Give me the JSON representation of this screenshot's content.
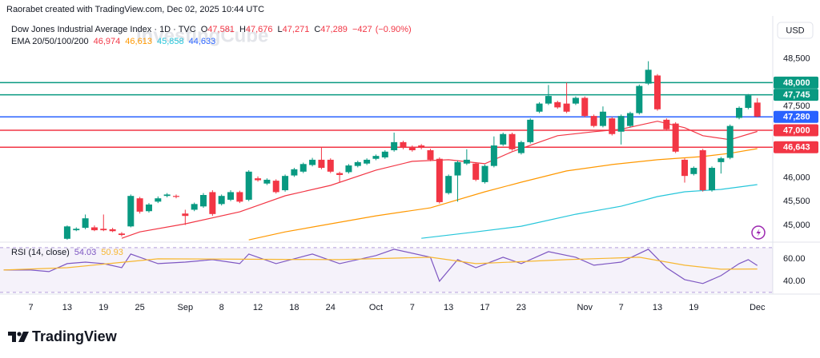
{
  "header": {
    "created": "Raorabet created with TradingView.com, Dec 02, 2025 10:44 UTC",
    "currency": "USD",
    "watermark": "InvestingCube"
  },
  "footer": {
    "brand": "TradingView"
  },
  "chart_data": [
    {
      "type": "candlestick",
      "legend": {
        "name": "Dow Jones Industrial Average Index · 1D · TVC",
        "ohlc": [
          {
            "name": "O",
            "value": 47581,
            "label": "47,581"
          },
          {
            "name": "H",
            "value": 47676,
            "label": "47,676"
          },
          {
            "name": "L",
            "value": 47271,
            "label": "47,271"
          },
          {
            "name": "C",
            "value": 47289,
            "label": "47,289"
          }
        ],
        "change": {
          "value": -427,
          "label": "−427"
        },
        "change_pct": {
          "value": -0.9,
          "label": "(−0.90%)"
        }
      },
      "ema_legend": {
        "name": "EMA 20/50/100/200",
        "values": [
          {
            "value": 46974,
            "label": "46,974",
            "color": "#f23645"
          },
          {
            "value": 46613,
            "label": "46,613",
            "color": "#ff9800"
          },
          {
            "value": 45858,
            "label": "45,858",
            "color": "#26c6da"
          },
          {
            "value": 44633,
            "label": "44,633",
            "color": "#2962ff"
          }
        ]
      },
      "up_color": "#089981",
      "down_color": "#f23645",
      "x": [
        0,
        1,
        2,
        3,
        4,
        5,
        6,
        7,
        8,
        9,
        10,
        11,
        12,
        13,
        14,
        15,
        16,
        17,
        18,
        19,
        20,
        21,
        22,
        23,
        24,
        25,
        26,
        27,
        28,
        29,
        30,
        31,
        32,
        33,
        34,
        35,
        36,
        37,
        38,
        39,
        40,
        41,
        42,
        43,
        44,
        45,
        46,
        47,
        48,
        49,
        50,
        51,
        52,
        53,
        54,
        55,
        56,
        57,
        58,
        59,
        60,
        61,
        62,
        63,
        64,
        65,
        66,
        67,
        68,
        69,
        70,
        71,
        72,
        73,
        74,
        75,
        76
      ],
      "open": [
        44720,
        44900,
        44950,
        44960,
        44930,
        44920,
        44830,
        44980,
        45570,
        45300,
        45500,
        45620,
        45620,
        45250,
        45330,
        45400,
        45700,
        45450,
        45540,
        45700,
        45540,
        45990,
        45880,
        45940,
        45740,
        46050,
        46130,
        46270,
        46380,
        46380,
        46100,
        46120,
        46250,
        46300,
        46400,
        46430,
        46580,
        46750,
        46650,
        46680,
        46580,
        46400,
        45680,
        46050,
        46300,
        46300,
        45910,
        46250,
        46700,
        46920,
        46520,
        46750,
        47390,
        47560,
        47590,
        47560,
        47560,
        47680,
        47300,
        47090,
        47250,
        46970,
        47090,
        47360,
        47980,
        48150,
        47220,
        47140,
        46380,
        46080,
        46580,
        45740,
        46330,
        46420,
        47260,
        47470,
        47581
      ],
      "high": [
        45000,
        44960,
        45230,
        45000,
        45230,
        44950,
        44860,
        45650,
        45600,
        45470,
        45610,
        45680,
        45650,
        45330,
        45480,
        45680,
        45740,
        45650,
        45740,
        45730,
        46160,
        46030,
        45990,
        45970,
        46070,
        46210,
        46320,
        46420,
        46650,
        46410,
        46130,
        46290,
        46360,
        46410,
        46490,
        46580,
        46950,
        46780,
        46680,
        46710,
        46610,
        46430,
        46070,
        46360,
        46600,
        46330,
        46280,
        46870,
        46950,
        46950,
        46780,
        47250,
        47590,
        47950,
        47620,
        48000,
        47710,
        47710,
        47330,
        47500,
        47280,
        47330,
        47390,
        47960,
        48450,
        48180,
        47250,
        47170,
        46410,
        46240,
        46610,
        46240,
        46440,
        47120,
        47500,
        47760,
        47676
      ],
      "low": [
        44700,
        44880,
        44920,
        44880,
        44880,
        44860,
        44770,
        44960,
        45250,
        45270,
        45470,
        45590,
        45570,
        45010,
        45300,
        45370,
        45200,
        45420,
        45510,
        45470,
        45510,
        45920,
        45850,
        45670,
        45710,
        46020,
        46100,
        46240,
        46180,
        46100,
        45900,
        46090,
        46220,
        46270,
        46370,
        46400,
        46550,
        46600,
        46550,
        46600,
        46350,
        45460,
        45650,
        45500,
        46270,
        45930,
        45880,
        46220,
        46670,
        46570,
        46490,
        46720,
        47360,
        47530,
        47450,
        47360,
        47530,
        47270,
        47060,
        47060,
        46890,
        46700,
        47060,
        47330,
        47950,
        47410,
        46990,
        46520,
        45900,
        46050,
        45710,
        45710,
        46090,
        46390,
        47230,
        47440,
        47271
      ],
      "close": [
        44980,
        44930,
        45150,
        44900,
        44900,
        44880,
        44800,
        45620,
        45290,
        45440,
        45570,
        45650,
        45600,
        45200,
        45450,
        45640,
        45240,
        45620,
        45700,
        45500,
        46130,
        45950,
        45960,
        45700,
        46040,
        46180,
        46290,
        46380,
        46210,
        46130,
        46060,
        46260,
        46330,
        46380,
        46460,
        46550,
        46750,
        46630,
        46580,
        46630,
        46380,
        45490,
        46040,
        46330,
        46380,
        45960,
        46250,
        46680,
        46920,
        46600,
        46750,
        47220,
        47560,
        47720,
        47480,
        47390,
        47680,
        47300,
        47090,
        47390,
        46920,
        47300,
        47360,
        47930,
        48270,
        47440,
        47020,
        46550,
        46040,
        46210,
        45740,
        46210,
        46410,
        47090,
        47470,
        47730,
        47289
      ],
      "overlays": [
        {
          "color": "#f23645",
          "x": [
            6,
            8,
            13,
            19,
            24,
            29,
            34,
            38,
            42,
            46,
            49,
            54,
            58,
            61,
            65,
            68,
            70,
            73,
            76
          ],
          "values": [
            44730,
            44865,
            45034,
            45286,
            45623,
            45842,
            46162,
            46347,
            46381,
            46297,
            46549,
            46886,
            46970,
            47021,
            47189,
            47054,
            46886,
            46802,
            46974
          ]
        },
        {
          "color": "#ff9800",
          "x": [
            20,
            24,
            29,
            34,
            40,
            46,
            50,
            55,
            60,
            65,
            70,
            73,
            76
          ],
          "values": [
            44697,
            44865,
            45034,
            45202,
            45370,
            45707,
            45909,
            46145,
            46280,
            46381,
            46448,
            46516,
            46613
          ]
        },
        {
          "color": "#26c6da",
          "x": [
            39,
            45,
            50,
            56,
            61,
            65,
            68,
            72,
            76
          ],
          "values": [
            44730,
            44865,
            44983,
            45236,
            45404,
            45606,
            45707,
            45758,
            45858
          ]
        }
      ],
      "levels": [
        {
          "value": 48000,
          "label": "48,000",
          "color": "#089981"
        },
        {
          "value": 47745,
          "label": "47,745",
          "color": "#089981"
        },
        {
          "value": 47280,
          "label": "47,280",
          "color": "#2962ff"
        },
        {
          "value": 47000,
          "label": "47,000",
          "color": "#f23645"
        },
        {
          "value": 46643,
          "label": "46,643",
          "color": "#f23645"
        }
      ],
      "xlim": [
        -7.4,
        77.7
      ],
      "ylim": [
        44700,
        49400
      ],
      "yticks": [
        {
          "value": 45000,
          "label": "45,000"
        },
        {
          "value": 45500,
          "label": "45,500"
        },
        {
          "value": 46000,
          "label": "46,000"
        },
        {
          "value": 47500,
          "label": "47,500"
        },
        {
          "value": 48500,
          "label": "48,500"
        }
      ],
      "xticks": [
        {
          "value": -4,
          "label": "7"
        },
        {
          "value": 0,
          "label": "13"
        },
        {
          "value": 4,
          "label": "19"
        },
        {
          "value": 8,
          "label": "25"
        },
        {
          "value": 13,
          "label": "Sep"
        },
        {
          "value": 17,
          "label": "8"
        },
        {
          "value": 21,
          "label": "12"
        },
        {
          "value": 25,
          "label": "18"
        },
        {
          "value": 29,
          "label": "24"
        },
        {
          "value": 34,
          "label": "Oct"
        },
        {
          "value": 38,
          "label": "7"
        },
        {
          "value": 42,
          "label": "13"
        },
        {
          "value": 46,
          "label": "17"
        },
        {
          "value": 50,
          "label": "23"
        },
        {
          "value": 57,
          "label": "Nov"
        },
        {
          "value": 61,
          "label": "7"
        },
        {
          "value": 65,
          "label": "13"
        },
        {
          "value": 69,
          "label": "19"
        },
        {
          "value": 76,
          "label": "Dec"
        }
      ]
    },
    {
      "type": "line",
      "legend": {
        "name": "RSI (14, close)",
        "values": [
          {
            "value": 54.03,
            "label": "54.03",
            "color": "#7e57c2"
          },
          {
            "value": 50.93,
            "label": "50.93",
            "color": "#f7b731"
          }
        ]
      },
      "series": [
        {
          "color": "#7e57c2",
          "x": [
            -7,
            -4,
            -2,
            0,
            2,
            4,
            6,
            7,
            8,
            10,
            13,
            16,
            19,
            20,
            23,
            27,
            30,
            34,
            36,
            40,
            41,
            43,
            45,
            48,
            50,
            53,
            56,
            58,
            61,
            64,
            66,
            68,
            70,
            72,
            74,
            75,
            76
          ],
          "values": [
            50.0,
            50.0,
            48.6,
            55.7,
            57.1,
            55.7,
            52.1,
            64.3,
            61.4,
            55.7,
            57.1,
            59.3,
            55.7,
            64.3,
            55.7,
            64.3,
            55.7,
            62.9,
            68.6,
            61.4,
            40.0,
            59.3,
            52.1,
            61.4,
            55.7,
            66.4,
            61.4,
            54.3,
            57.1,
            68.6,
            52.1,
            41.4,
            37.9,
            45.0,
            55.7,
            59.3,
            54.03
          ]
        },
        {
          "color": "#f7b731",
          "x": [
            -7,
            0,
            10,
            30,
            40,
            45,
            55,
            63,
            68,
            72,
            76
          ],
          "values": [
            50.0,
            52.1,
            60.0,
            59.3,
            61.4,
            55.7,
            59.3,
            61.4,
            54.3,
            50.7,
            50.93
          ]
        }
      ],
      "band": [
        30,
        70
      ],
      "xlim": [
        -7.4,
        77.7
      ],
      "ylim": [
        28.5,
        73.5
      ],
      "yticks": [
        {
          "value": 40,
          "label": "40.00"
        },
        {
          "value": 60,
          "label": "60.00"
        }
      ]
    }
  ]
}
